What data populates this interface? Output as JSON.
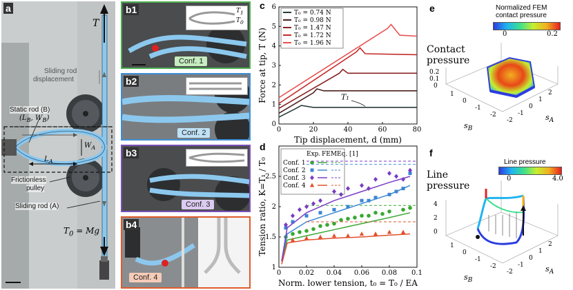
{
  "panels": {
    "a": {
      "label": "a",
      "T": "T",
      "sliding_rod_disp_1": "Sliding rod",
      "sliding_rod_disp_2": "displacement",
      "static_rod": "Static rod (B)",
      "lb_wb": "(L",
      "lb_wb_full": "(L_B, W_B)",
      "wa": "W",
      "la": "L",
      "frictionless_1": "Frictionless",
      "frictionless_2": "pulley",
      "sliding_rod_a": "Sliding rod (A)",
      "t0_eq": "T₀ = Mg"
    },
    "b": {
      "b1": {
        "label": "b1",
        "conf": "Conf. 1",
        "t1": "T₁",
        "t0": "T₀",
        "color": "#4caf50"
      },
      "b2": {
        "label": "b2",
        "conf": "Conf. 2",
        "color": "#3f8fd8"
      },
      "b3": {
        "label": "b3",
        "conf": "Conf. 3",
        "color": "#7b4fb8"
      },
      "b4": {
        "label": "b4",
        "conf": "Conf. 4",
        "color": "#e05a2c"
      }
    },
    "c": {
      "label": "c"
    },
    "d": {
      "label": "d"
    },
    "e": {
      "label": "e",
      "colorbar_title_1": "Normalized FEM",
      "colorbar_title_2": "contact pressure",
      "cb_min": "0",
      "cb_max": "0.2",
      "side_label_1": "Contact",
      "side_label_2": "pressure",
      "z_ticks": [
        "0.2",
        "0.1",
        "0"
      ],
      "sb_ticks": [
        "1",
        "0",
        "-1",
        "-2"
      ],
      "sa_ticks": [
        "2",
        "1",
        "0",
        "-1",
        "-2"
      ],
      "sb": "s",
      "sa": "s"
    },
    "f": {
      "label": "f",
      "colorbar_title": "Line pressure",
      "cb_min": "0",
      "cb_max": "4.0",
      "side_label_1": "Line",
      "side_label_2": "pressure",
      "z_ticks": [
        "4",
        "2",
        "0"
      ],
      "sb_ticks": [
        "1",
        "0",
        "-1",
        "-2"
      ],
      "sa_ticks": [
        "2",
        "1",
        "0",
        "-1",
        "-2"
      ],
      "sb": "s",
      "sa": "s"
    }
  },
  "chart_data": [
    {
      "type": "line",
      "panel": "c",
      "ylabel": "Force at tip, T (N)",
      "xlabel": "Tip displacement, d (mm)",
      "xlim": [
        0,
        80
      ],
      "ylim": [
        0,
        6
      ],
      "xticks": [
        "0",
        "20",
        "40",
        "60",
        "80"
      ],
      "yticks": [
        "0",
        "1",
        "2",
        "3",
        "4",
        "5",
        "6"
      ],
      "annotation": "T₁",
      "series": [
        {
          "name": "T₀ = 0.74 N",
          "color": "#2b3a3a",
          "x": [
            0,
            10,
            13,
            20,
            80
          ],
          "y": [
            0.35,
            0.8,
            0.95,
            0.85,
            0.85
          ]
        },
        {
          "name": "T₀ = 0.98 N",
          "color": "#4a1f1f",
          "x": [
            0,
            20,
            22,
            26,
            80
          ],
          "y": [
            0.55,
            1.6,
            1.8,
            1.7,
            1.7
          ]
        },
        {
          "name": "T₀ = 1.47 N",
          "color": "#8a2020",
          "x": [
            0,
            35,
            37,
            40,
            80
          ],
          "y": [
            0.8,
            2.6,
            2.8,
            2.6,
            2.6
          ]
        },
        {
          "name": "T₀ = 1.72 N",
          "color": "#c42828",
          "x": [
            0,
            45,
            47,
            50,
            80
          ],
          "y": [
            1.05,
            3.7,
            3.9,
            3.6,
            3.55
          ]
        },
        {
          "name": "T₀ = 1.96 N",
          "color": "#e85050",
          "x": [
            0,
            63,
            65,
            70,
            80
          ],
          "y": [
            1.35,
            4.9,
            5.1,
            4.55,
            4.5
          ]
        }
      ]
    },
    {
      "type": "scatter",
      "panel": "d",
      "ylabel": "Tension ratio, K=T₁ / T₀",
      "xlabel": "Norm. lower tension, t₀ = T₀ / EA",
      "xlim": [
        0,
        0.1
      ],
      "ylim": [
        1,
        3
      ],
      "xticks": [
        "0",
        "0.02",
        "0.04",
        "0.06",
        "0.08",
        "0.1"
      ],
      "yticks": [
        "1",
        "1.5",
        "2",
        "2.5"
      ],
      "legend_header": [
        "Exp.",
        "FEM",
        "Eq. [1]"
      ],
      "series": [
        {
          "name": "Conf. 1",
          "color": "#3aa832",
          "marker": "circle",
          "eq": 2.02,
          "points_x": [
            0.005,
            0.01,
            0.015,
            0.02,
            0.025,
            0.03,
            0.035,
            0.04,
            0.045,
            0.05,
            0.055,
            0.06,
            0.065,
            0.07,
            0.075,
            0.08,
            0.09,
            0.095
          ],
          "points_y": [
            1.5,
            1.55,
            1.58,
            1.6,
            1.63,
            1.68,
            1.7,
            1.72,
            1.78,
            1.8,
            1.82,
            1.85,
            1.85,
            1.9,
            1.88,
            1.92,
            1.95,
            1.98
          ],
          "fem_x": [
            0.002,
            0.006,
            0.02,
            0.04,
            0.06,
            0.08,
            0.095
          ],
          "fem_y": [
            1.1,
            1.45,
            1.52,
            1.62,
            1.72,
            1.82,
            1.9
          ]
        },
        {
          "name": "Conf. 2",
          "color": "#3a86d4",
          "marker": "square",
          "eq": 2.7,
          "points_x": [
            0.005,
            0.01,
            0.02,
            0.03,
            0.04,
            0.05,
            0.06,
            0.065,
            0.07,
            0.08,
            0.085,
            0.09,
            0.095
          ],
          "points_y": [
            1.65,
            1.75,
            1.85,
            1.9,
            1.95,
            2.0,
            2.1,
            2.1,
            2.15,
            2.2,
            2.25,
            2.3,
            2.55
          ],
          "fem_x": [
            0.002,
            0.006,
            0.02,
            0.04,
            0.06,
            0.08,
            0.095
          ],
          "fem_y": [
            1.1,
            1.55,
            1.75,
            1.9,
            2.05,
            2.2,
            2.35
          ]
        },
        {
          "name": "Conf. 3",
          "color": "#7a3cc4",
          "marker": "diamond",
          "eq": 2.75,
          "points_x": [
            0.005,
            0.01,
            0.015,
            0.02,
            0.025,
            0.03,
            0.04,
            0.045,
            0.05,
            0.06,
            0.065,
            0.07,
            0.08,
            0.085,
            0.09,
            0.095
          ],
          "points_y": [
            1.7,
            1.85,
            1.95,
            2.0,
            2.05,
            2.1,
            2.25,
            2.2,
            2.3,
            2.35,
            2.3,
            2.45,
            2.55,
            2.5,
            2.45,
            2.6
          ],
          "fem_x": [
            0.002,
            0.006,
            0.02,
            0.04,
            0.06,
            0.08,
            0.095
          ],
          "fem_y": [
            1.1,
            1.65,
            1.9,
            2.1,
            2.25,
            2.4,
            2.5
          ]
        },
        {
          "name": "Conf. 4",
          "color": "#e0502c",
          "marker": "triangle",
          "eq": 1.75,
          "points_x": [
            0.01,
            0.02,
            0.03,
            0.04,
            0.05,
            0.06,
            0.07,
            0.08,
            0.09
          ],
          "points_y": [
            1.45,
            1.48,
            1.5,
            1.52,
            1.52,
            1.55,
            1.55,
            1.58,
            1.58
          ],
          "fem_x": [
            0.002,
            0.006,
            0.02,
            0.04,
            0.06,
            0.08,
            0.095
          ],
          "fem_y": [
            1.05,
            1.4,
            1.45,
            1.48,
            1.5,
            1.53,
            1.55
          ]
        }
      ]
    }
  ]
}
